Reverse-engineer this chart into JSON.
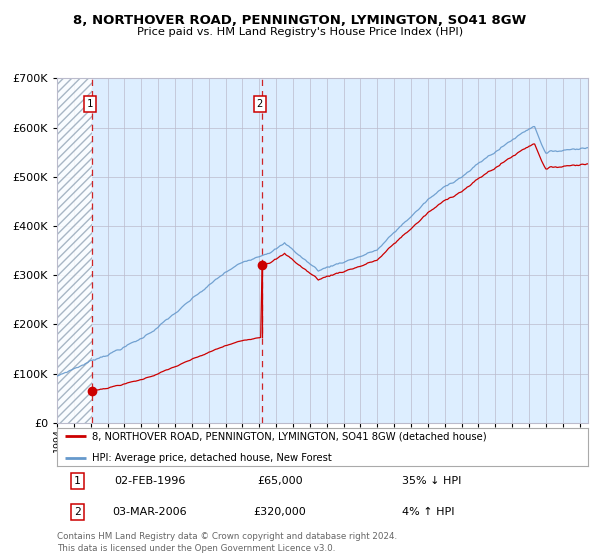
{
  "title": "8, NORTHOVER ROAD, PENNINGTON, LYMINGTON, SO41 8GW",
  "subtitle": "Price paid vs. HM Land Registry's House Price Index (HPI)",
  "sale1_label": "02-FEB-1996",
  "sale1_price": 65000,
  "sale1_hpi_rel": "35% ↓ HPI",
  "sale2_label": "03-MAR-2006",
  "sale2_price": 320000,
  "sale2_hpi_rel": "4% ↑ HPI",
  "legend_line1": "8, NORTHOVER ROAD, PENNINGTON, LYMINGTON, SO41 8GW (detached house)",
  "legend_line2": "HPI: Average price, detached house, New Forest",
  "footnote": "Contains HM Land Registry data © Crown copyright and database right 2024.\nThis data is licensed under the Open Government Licence v3.0.",
  "red_color": "#cc0000",
  "blue_color": "#6699cc",
  "bg_color": "#ddeeff",
  "hatch_color": "#aabbcc",
  "grid_color": "#bbbbcc",
  "ylim": [
    0,
    700000
  ],
  "xstart": 1994.0,
  "xend": 2025.5,
  "sale1_t": 1996.083,
  "sale2_t": 2006.167
}
